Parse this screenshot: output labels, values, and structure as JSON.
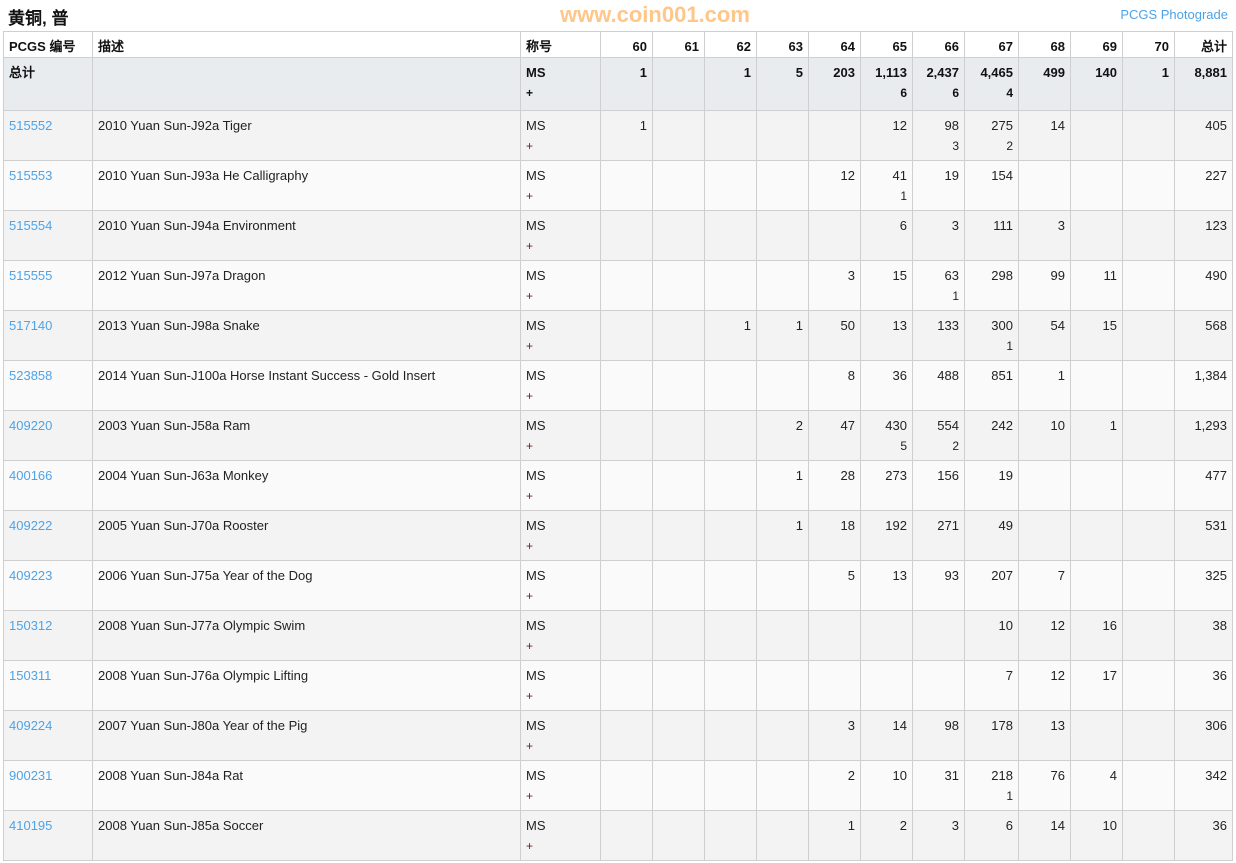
{
  "title": "黄铜, 普",
  "photograde_link": "PCGS Photograde",
  "watermark": "www.coin001.com",
  "colors": {
    "link": "#4da3e8",
    "total_row_bg": "#e8ecef"
  },
  "headers": {
    "pcgs": "PCGS 编号",
    "desc": "描述",
    "designation": "称号",
    "grades": [
      "60",
      "61",
      "62",
      "63",
      "64",
      "65",
      "66",
      "67",
      "68",
      "69",
      "70"
    ],
    "total": "总计"
  },
  "total_row": {
    "label": "总计",
    "grade": "MS",
    "plus": "+",
    "counts": [
      "1",
      "",
      "1",
      "5",
      "203",
      "1,113",
      "2,437",
      "4,465",
      "499",
      "140",
      "1"
    ],
    "plus_counts": [
      "",
      "",
      "",
      "",
      "",
      "6",
      "6",
      "4",
      "",
      "",
      ""
    ],
    "total": "8,881"
  },
  "rows": [
    {
      "id": "515552",
      "desc": "2010 Yuan Sun-J92a Tiger",
      "grade": "MS",
      "plus": "+",
      "counts": [
        "1",
        "",
        "",
        "",
        "",
        "12",
        "98",
        "275",
        "14",
        "",
        ""
      ],
      "plus_counts": [
        "",
        "",
        "",
        "",
        "",
        "",
        "3",
        "2",
        "",
        "",
        ""
      ],
      "total": "405"
    },
    {
      "id": "515553",
      "desc": "2010 Yuan Sun-J93a He Calligraphy",
      "grade": "MS",
      "plus": "+",
      "counts": [
        "",
        "",
        "",
        "",
        "12",
        "41",
        "19",
        "154",
        "",
        "",
        ""
      ],
      "plus_counts": [
        "",
        "",
        "",
        "",
        "",
        "1",
        "",
        "",
        "",
        "",
        ""
      ],
      "total": "227"
    },
    {
      "id": "515554",
      "desc": "2010 Yuan Sun-J94a Environment",
      "grade": "MS",
      "plus": "+",
      "counts": [
        "",
        "",
        "",
        "",
        "",
        "6",
        "3",
        "111",
        "3",
        "",
        ""
      ],
      "plus_counts": [
        "",
        "",
        "",
        "",
        "",
        "",
        "",
        "",
        "",
        "",
        ""
      ],
      "total": "123"
    },
    {
      "id": "515555",
      "desc": "2012 Yuan Sun-J97a Dragon",
      "grade": "MS",
      "plus": "+",
      "counts": [
        "",
        "",
        "",
        "",
        "3",
        "15",
        "63",
        "298",
        "99",
        "11",
        ""
      ],
      "plus_counts": [
        "",
        "",
        "",
        "",
        "",
        "",
        "1",
        "",
        "",
        "",
        ""
      ],
      "total": "490"
    },
    {
      "id": "517140",
      "desc": "2013 Yuan Sun-J98a Snake",
      "grade": "MS",
      "plus": "+",
      "counts": [
        "",
        "",
        "1",
        "1",
        "50",
        "13",
        "133",
        "300",
        "54",
        "15",
        ""
      ],
      "plus_counts": [
        "",
        "",
        "",
        "",
        "",
        "",
        "",
        "1",
        "",
        "",
        ""
      ],
      "total": "568"
    },
    {
      "id": "523858",
      "desc": "2014 Yuan Sun-J100a Horse Instant Success - Gold Insert",
      "grade": "MS",
      "plus": "+",
      "counts": [
        "",
        "",
        "",
        "",
        "8",
        "36",
        "488",
        "851",
        "1",
        "",
        ""
      ],
      "plus_counts": [
        "",
        "",
        "",
        "",
        "",
        "",
        "",
        "",
        "",
        "",
        ""
      ],
      "total": "1,384"
    },
    {
      "id": "409220",
      "desc": "2003 Yuan Sun-J58a Ram",
      "grade": "MS",
      "plus": "+",
      "counts": [
        "",
        "",
        "",
        "2",
        "47",
        "430",
        "554",
        "242",
        "10",
        "1",
        ""
      ],
      "plus_counts": [
        "",
        "",
        "",
        "",
        "",
        "5",
        "2",
        "",
        "",
        "",
        ""
      ],
      "total": "1,293"
    },
    {
      "id": "400166",
      "desc": "2004 Yuan Sun-J63a Monkey",
      "grade": "MS",
      "plus": "+",
      "counts": [
        "",
        "",
        "",
        "1",
        "28",
        "273",
        "156",
        "19",
        "",
        "",
        ""
      ],
      "plus_counts": [
        "",
        "",
        "",
        "",
        "",
        "",
        "",
        "",
        "",
        "",
        ""
      ],
      "total": "477"
    },
    {
      "id": "409222",
      "desc": "2005 Yuan Sun-J70a Rooster",
      "grade": "MS",
      "plus": "+",
      "counts": [
        "",
        "",
        "",
        "1",
        "18",
        "192",
        "271",
        "49",
        "",
        "",
        ""
      ],
      "plus_counts": [
        "",
        "",
        "",
        "",
        "",
        "",
        "",
        "",
        "",
        "",
        ""
      ],
      "total": "531"
    },
    {
      "id": "409223",
      "desc": "2006 Yuan Sun-J75a Year of the Dog",
      "grade": "MS",
      "plus": "+",
      "counts": [
        "",
        "",
        "",
        "",
        "5",
        "13",
        "93",
        "207",
        "7",
        "",
        ""
      ],
      "plus_counts": [
        "",
        "",
        "",
        "",
        "",
        "",
        "",
        "",
        "",
        "",
        ""
      ],
      "total": "325"
    },
    {
      "id": "150312",
      "desc": "2008 Yuan Sun-J77a Olympic Swim",
      "grade": "MS",
      "plus": "+",
      "counts": [
        "",
        "",
        "",
        "",
        "",
        "",
        "",
        "10",
        "12",
        "16",
        ""
      ],
      "plus_counts": [
        "",
        "",
        "",
        "",
        "",
        "",
        "",
        "",
        "",
        "",
        ""
      ],
      "total": "38"
    },
    {
      "id": "150311",
      "desc": "2008 Yuan Sun-J76a Olympic Lifting",
      "grade": "MS",
      "plus": "+",
      "counts": [
        "",
        "",
        "",
        "",
        "",
        "",
        "",
        "7",
        "12",
        "17",
        ""
      ],
      "plus_counts": [
        "",
        "",
        "",
        "",
        "",
        "",
        "",
        "",
        "",
        "",
        ""
      ],
      "total": "36"
    },
    {
      "id": "409224",
      "desc": "2007 Yuan Sun-J80a Year of the Pig",
      "grade": "MS",
      "plus": "+",
      "counts": [
        "",
        "",
        "",
        "",
        "3",
        "14",
        "98",
        "178",
        "13",
        "",
        ""
      ],
      "plus_counts": [
        "",
        "",
        "",
        "",
        "",
        "",
        "",
        "",
        "",
        "",
        ""
      ],
      "total": "306"
    },
    {
      "id": "900231",
      "desc": "2008 Yuan Sun-J84a Rat",
      "grade": "MS",
      "plus": "+",
      "counts": [
        "",
        "",
        "",
        "",
        "2",
        "10",
        "31",
        "218",
        "76",
        "4",
        ""
      ],
      "plus_counts": [
        "",
        "",
        "",
        "",
        "",
        "",
        "",
        "1",
        "",
        "",
        ""
      ],
      "total": "342"
    },
    {
      "id": "410195",
      "desc": "2008 Yuan Sun-J85a Soccer",
      "grade": "MS",
      "plus": "+",
      "counts": [
        "",
        "",
        "",
        "",
        "1",
        "2",
        "3",
        "6",
        "14",
        "10",
        ""
      ],
      "plus_counts": [
        "",
        "",
        "",
        "",
        "",
        "",
        "",
        "",
        "",
        "",
        ""
      ],
      "total": "36"
    }
  ]
}
